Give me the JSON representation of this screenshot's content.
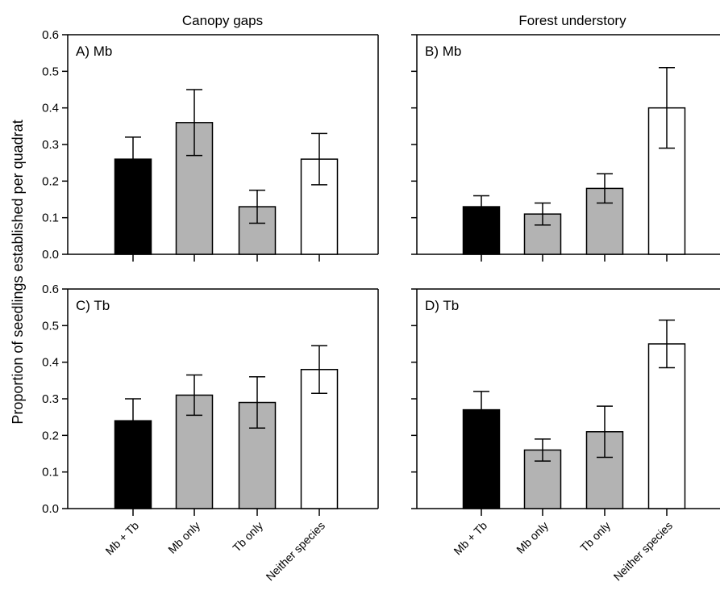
{
  "chart_data": {
    "type": "bar",
    "ylabel": "Proportion of seedlings established per quadrat",
    "column_titles": [
      "Canopy gaps",
      "Forest understory"
    ],
    "categories": [
      "Mb + Tb",
      "Mb only",
      "Tb only",
      "Neither species"
    ],
    "bar_colors": [
      "#000000",
      "#b3b3b3",
      "#b3b3b3",
      "#ffffff"
    ],
    "ylim": [
      0,
      0.6
    ],
    "yticks": [
      0.0,
      0.1,
      0.2,
      0.3,
      0.4,
      0.5,
      0.6
    ],
    "ytick_labels": [
      "0.0",
      "0.1",
      "0.2",
      "0.3",
      "0.4",
      "0.5",
      "0.6"
    ],
    "panels": [
      {
        "label": "A) Mb",
        "values": [
          0.26,
          0.36,
          0.13,
          0.26
        ],
        "err_low": [
          0.2,
          0.27,
          0.085,
          0.19
        ],
        "err_high": [
          0.32,
          0.45,
          0.175,
          0.33
        ]
      },
      {
        "label": "B) Mb",
        "values": [
          0.13,
          0.11,
          0.18,
          0.4
        ],
        "err_low": [
          0.1,
          0.08,
          0.14,
          0.29
        ],
        "err_high": [
          0.16,
          0.14,
          0.22,
          0.51
        ]
      },
      {
        "label": "C) Tb",
        "values": [
          0.24,
          0.31,
          0.29,
          0.38
        ],
        "err_low": [
          0.18,
          0.255,
          0.22,
          0.315
        ],
        "err_high": [
          0.3,
          0.365,
          0.36,
          0.445
        ]
      },
      {
        "label": "D) Tb",
        "values": [
          0.27,
          0.16,
          0.21,
          0.45
        ],
        "err_low": [
          0.22,
          0.13,
          0.14,
          0.385
        ],
        "err_high": [
          0.32,
          0.19,
          0.28,
          0.515
        ]
      }
    ]
  }
}
